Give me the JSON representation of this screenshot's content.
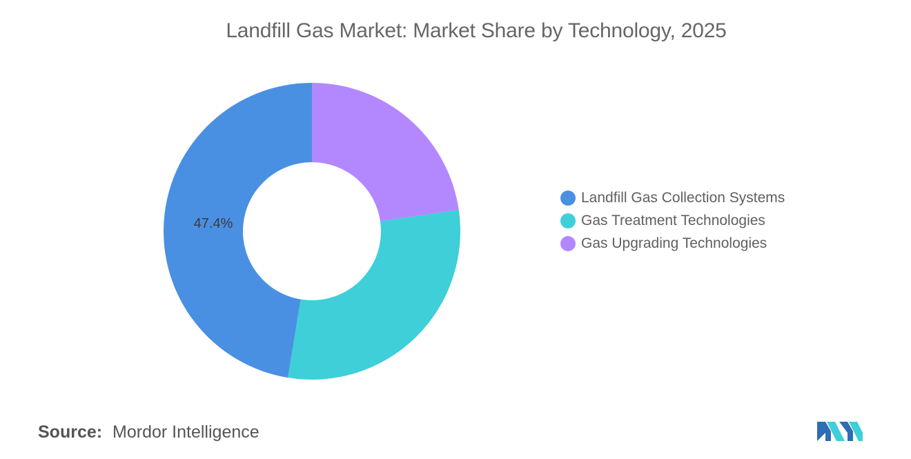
{
  "chart_data": {
    "type": "pie",
    "title": "Landfill Gas Market: Market Share by Technology, 2025",
    "donut": true,
    "series": [
      {
        "name": "Landfill Gas Collection Systems",
        "value": 47.4,
        "color": "#4a90e2",
        "label": "47.4%"
      },
      {
        "name": "Gas Treatment Technologies",
        "value": 29.9,
        "color": "#3ecfd9",
        "label": ""
      },
      {
        "name": "Gas Upgrading Technologies",
        "value": 22.7,
        "color": "#b388ff",
        "label": ""
      }
    ],
    "legend_position": "right"
  },
  "source": {
    "label": "Source:",
    "value": "Mordor Intelligence"
  },
  "logo": {
    "icon": "mordor-intelligence-logo-icon",
    "colors": [
      "#2f6db5",
      "#3ecfd9"
    ]
  }
}
